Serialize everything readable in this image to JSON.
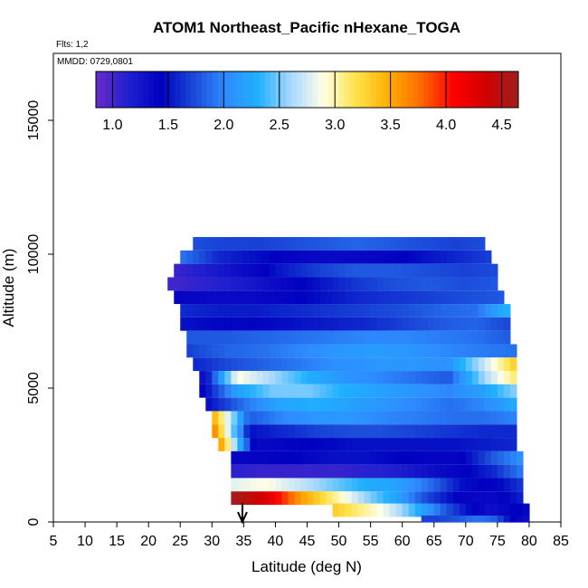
{
  "chart_data": {
    "type": "heatmap",
    "title": "ATOM1 Northeast_Pacific nHexane_TOGA",
    "flights_label": "Flts: 1,2",
    "dates_label": "MMDD: 0729,0801",
    "xlabel": "Latitude (deg N)",
    "ylabel": "Altitude (m)",
    "xlim": [
      5,
      85
    ],
    "ylim": [
      0,
      17500
    ],
    "x_ticks": [
      "5",
      "10",
      "15",
      "20",
      "25",
      "30",
      "35",
      "40",
      "45",
      "50",
      "55",
      "60",
      "65",
      "70",
      "75",
      "80",
      "85"
    ],
    "y_ticks": [
      "0",
      "5000",
      "10000",
      "15000"
    ],
    "colorbar": {
      "range": [
        0.85,
        4.65
      ],
      "ticks": [
        "1.0",
        "1.5",
        "2.0",
        "2.5",
        "3.0",
        "3.5",
        "4.0",
        "4.5"
      ],
      "stops": [
        "#6a2ac8",
        "#2020d0",
        "#0000c0",
        "#1a48d8",
        "#2e8cff",
        "#1fb0ff",
        "#a8d8ff",
        "#ffffe6",
        "#ffe24a",
        "#ffb000",
        "#ff6a00",
        "#ff0000",
        "#d00000",
        "#a02020"
      ]
    },
    "arrow_latitude": 34.8,
    "altitude_bands": [
      {
        "alt": 10400,
        "lat_min": 27,
        "lat_max": 73,
        "v": [
          1.75,
          1.7,
          1.7,
          1.75,
          1.8,
          1.85,
          1.8,
          1.75,
          1.7,
          1.75
        ]
      },
      {
        "alt": 9900,
        "lat_min": 25,
        "lat_max": 74,
        "v": [
          1.9,
          1.6,
          1.5,
          1.4,
          1.35,
          1.35,
          1.4,
          1.5,
          1.6,
          1.7
        ]
      },
      {
        "alt": 9400,
        "lat_min": 24,
        "lat_max": 75,
        "v": [
          1.05,
          1.2,
          1.35,
          1.55,
          1.7,
          1.8,
          1.8,
          1.75,
          1.7,
          1.75
        ]
      },
      {
        "alt": 8900,
        "lat_min": 23,
        "lat_max": 75,
        "v": [
          1.0,
          1.1,
          1.2,
          1.35,
          1.5,
          1.65,
          1.75,
          1.8,
          1.75,
          1.8
        ]
      },
      {
        "alt": 8400,
        "lat_min": 24,
        "lat_max": 76,
        "v": [
          1.4,
          1.35,
          1.35,
          1.4,
          1.5,
          1.6,
          1.65,
          1.7,
          1.75,
          1.8
        ]
      },
      {
        "alt": 7900,
        "lat_min": 25,
        "lat_max": 77,
        "v": [
          1.6,
          1.55,
          1.55,
          1.6,
          1.65,
          1.7,
          1.75,
          1.85,
          1.9,
          2.4
        ]
      },
      {
        "alt": 7400,
        "lat_min": 25,
        "lat_max": 77,
        "v": [
          1.5,
          1.45,
          1.45,
          1.5,
          1.55,
          1.6,
          1.7,
          1.8,
          1.85,
          1.7
        ]
      },
      {
        "alt": 6900,
        "lat_min": 26,
        "lat_max": 77,
        "v": [
          1.8,
          1.8,
          1.85,
          1.9,
          1.95,
          2.0,
          2.0,
          1.95,
          1.9,
          1.8
        ]
      },
      {
        "alt": 6400,
        "lat_min": 26,
        "lat_max": 78,
        "v": [
          1.7,
          1.85,
          1.9,
          2.0,
          2.1,
          2.15,
          2.1,
          2.0,
          1.95,
          1.9
        ]
      },
      {
        "alt": 5900,
        "lat_min": 27,
        "lat_max": 78,
        "v": [
          1.6,
          1.75,
          1.85,
          1.95,
          2.05,
          2.1,
          2.1,
          2.05,
          2.7,
          3.4
        ]
      },
      {
        "alt": 5400,
        "lat_min": 28,
        "lat_max": 78,
        "v": [
          1.3,
          2.9,
          2.6,
          2.3,
          2.1,
          2.0,
          1.9,
          1.8,
          2.6,
          3.2
        ]
      },
      {
        "alt": 4900,
        "lat_min": 28,
        "lat_max": 78,
        "v": [
          1.4,
          2.2,
          2.5,
          2.5,
          2.3,
          2.2,
          2.1,
          2.0,
          2.2,
          2.6
        ]
      },
      {
        "alt": 4400,
        "lat_min": 29,
        "lat_max": 78,
        "v": [
          1.5,
          1.9,
          2.2,
          2.3,
          2.2,
          2.1,
          2.0,
          1.9,
          2.0,
          2.3
        ]
      },
      {
        "alt": 3900,
        "lat_min": 30,
        "lat_max": 78,
        "v": [
          3.4,
          1.8,
          2.0,
          2.1,
          2.1,
          2.0,
          1.95,
          1.9,
          1.9,
          2.0
        ]
      },
      {
        "alt": 3400,
        "lat_min": 30,
        "lat_max": 78,
        "v": [
          3.6,
          1.5,
          1.6,
          1.7,
          1.75,
          1.75,
          1.7,
          1.65,
          1.6,
          1.6
        ]
      },
      {
        "alt": 2900,
        "lat_min": 31,
        "lat_max": 78,
        "v": [
          3.5,
          1.35,
          1.4,
          1.45,
          1.5,
          1.5,
          1.5,
          1.5,
          1.55,
          1.6
        ]
      },
      {
        "alt": 2400,
        "lat_min": 33,
        "lat_max": 79,
        "v": [
          1.4,
          1.4,
          1.45,
          1.5,
          1.5,
          1.45,
          1.4,
          1.4,
          1.8,
          2.1
        ]
      },
      {
        "alt": 1900,
        "lat_min": 33,
        "lat_max": 79,
        "v": [
          1.1,
          1.05,
          1.05,
          1.05,
          1.1,
          1.15,
          1.3,
          1.4,
          1.6,
          2.0
        ]
      },
      {
        "alt": 1400,
        "lat_min": 33,
        "lat_max": 79,
        "v": [
          2.8,
          2.9,
          2.7,
          2.5,
          2.3,
          2.2,
          1.9,
          1.5,
          1.4,
          1.7
        ]
      },
      {
        "alt": 900,
        "lat_min": 33,
        "lat_max": 79,
        "v": [
          4.6,
          4.3,
          3.6,
          3.1,
          2.6,
          2.2,
          1.7,
          1.4,
          1.35,
          1.6
        ]
      },
      {
        "alt": 450,
        "lat_min": 49,
        "lat_max": 80,
        "v": [
          3.3,
          3.1,
          2.9,
          2.6,
          2.2,
          1.8,
          1.5,
          1.3,
          1.4,
          1.5
        ]
      },
      {
        "alt": 0,
        "lat_min": 63,
        "lat_max": 80,
        "v": [
          1.7,
          1.7,
          1.75,
          1.8,
          1.9,
          1.9,
          1.8,
          1.5,
          1.35,
          1.3
        ]
      }
    ]
  }
}
